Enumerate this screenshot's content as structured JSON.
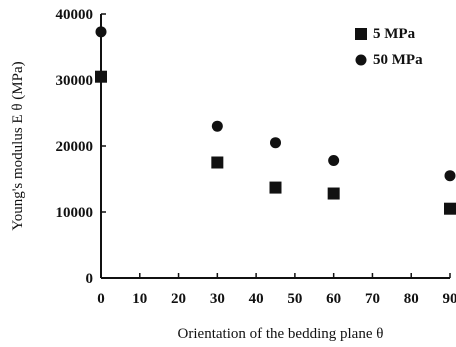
{
  "chart_data": {
    "type": "scatter",
    "xlabel": "Orientation of the bedding plane θ",
    "ylabel": "Young's modulus E θ (MPa)",
    "xlim": [
      0,
      90
    ],
    "ylim": [
      0,
      40000
    ],
    "xticks": [
      "0",
      "10",
      "20",
      "30",
      "40",
      "50",
      "60",
      "70",
      "80",
      "90"
    ],
    "yticks": [
      "0",
      "10000",
      "20000",
      "30000",
      "40000"
    ],
    "legend_position": "top-right",
    "series": [
      {
        "name": "5 MPa",
        "marker": "square",
        "x": [
          0,
          30,
          45,
          60,
          90
        ],
        "y": [
          30500,
          17500,
          13700,
          12800,
          10500
        ]
      },
      {
        "name": "50 MPa",
        "marker": "circle",
        "x": [
          0,
          30,
          45,
          60,
          90
        ],
        "y": [
          37300,
          23000,
          20500,
          17800,
          15500
        ]
      }
    ]
  }
}
